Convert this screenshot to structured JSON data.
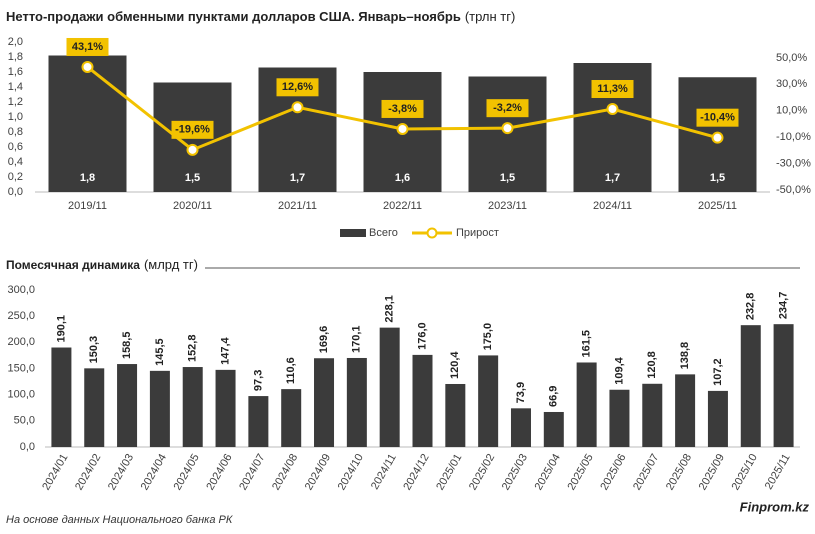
{
  "chart_data": [
    {
      "type": "bar",
      "title": "Нетто-продажи обменными пунктами долларов США. Январь–ноябрь",
      "subtitle": "(трлн тг)",
      "categories": [
        "2019/11",
        "2020/11",
        "2021/11",
        "2022/11",
        "2023/11",
        "2024/11",
        "2025/11"
      ],
      "series": [
        {
          "name": "Всего",
          "color": "#3b3b3b",
          "values": [
            1.82,
            1.46,
            1.66,
            1.6,
            1.54,
            1.72,
            1.53
          ],
          "value_labels": [
            "1,8",
            "1,5",
            "1,7",
            "1,6",
            "1,5",
            "1,7",
            "1,5"
          ]
        },
        {
          "name": "Прирост",
          "type": "line",
          "axis": "y2",
          "color": "#f2c200",
          "values": [
            43.1,
            -19.6,
            12.6,
            -3.8,
            -3.2,
            11.3,
            -10.4
          ],
          "value_labels": [
            "43,1%",
            "-19,6%",
            "12,6%",
            "-3,8%",
            "-3,2%",
            "11,3%",
            "-10,4%"
          ]
        }
      ],
      "ylim": [
        0,
        2.0
      ],
      "yticks": [
        {
          "value": 0,
          "label": "0,0"
        },
        {
          "value": 0.2,
          "label": "0,2"
        },
        {
          "value": 0.4,
          "label": "0,4"
        },
        {
          "value": 0.6,
          "label": "0,6"
        },
        {
          "value": 0.8,
          "label": "0,8"
        },
        {
          "value": 1.0,
          "label": "1,0"
        },
        {
          "value": 1.2,
          "label": "1,2"
        },
        {
          "value": 1.4,
          "label": "1,4"
        },
        {
          "value": 1.6,
          "label": "1,6"
        },
        {
          "value": 1.8,
          "label": "1,8"
        },
        {
          "value": 2.0,
          "label": "2,0"
        }
      ],
      "y2lim": [
        -51.5,
        62
      ],
      "y2ticks": [
        {
          "value": -50,
          "label": "-50,0%"
        },
        {
          "value": -30,
          "label": "-30,0%"
        },
        {
          "value": -10,
          "label": "-10,0%"
        },
        {
          "value": 10,
          "label": "10,0%"
        },
        {
          "value": 30,
          "label": "30,0%"
        },
        {
          "value": 50,
          "label": "50,0%"
        }
      ],
      "legend": "bottom"
    },
    {
      "type": "bar",
      "title": "Помесячная динамика",
      "subtitle": "(млрд тг)",
      "categories": [
        "2024/01",
        "2024/02",
        "2024/03",
        "2024/04",
        "2024/05",
        "2024/06",
        "2024/07",
        "2024/08",
        "2024/09",
        "2024/10",
        "2024/11",
        "2024/12",
        "2025/01",
        "2025/02",
        "2025/03",
        "2025/04",
        "2025/05",
        "2025/06",
        "2025/07",
        "2025/08",
        "2025/09",
        "2025/10",
        "2025/11"
      ],
      "values": [
        190.1,
        150.3,
        158.5,
        145.5,
        152.8,
        147.4,
        97.3,
        110.6,
        169.6,
        170.1,
        228.1,
        176.0,
        120.4,
        175.0,
        73.9,
        66.9,
        161.5,
        109.4,
        120.8,
        138.8,
        107.2,
        232.8,
        234.7
      ],
      "value_labels": [
        "190,1",
        "150,3",
        "158,5",
        "145,5",
        "152,8",
        "147,4",
        "97,3",
        "110,6",
        "169,6",
        "170,1",
        "228,1",
        "176,0",
        "120,4",
        "175,0",
        "73,9",
        "66,9",
        "161,5",
        "109,4",
        "120,8",
        "138,8",
        "107,2",
        "232,8",
        "234,7"
      ],
      "color": "#3b3b3b",
      "ylim": [
        0,
        300
      ],
      "yticks": [
        {
          "value": 0,
          "label": "0,0"
        },
        {
          "value": 50,
          "label": "50,0"
        },
        {
          "value": 100,
          "label": "100,0"
        },
        {
          "value": 150,
          "label": "150,0"
        },
        {
          "value": 200,
          "label": "200,0"
        },
        {
          "value": 250,
          "label": "250,0"
        },
        {
          "value": 300,
          "label": "300,0"
        }
      ]
    }
  ],
  "footer": {
    "source": "На основе данных Национального банка РК",
    "brand": "Finprom.kz"
  }
}
